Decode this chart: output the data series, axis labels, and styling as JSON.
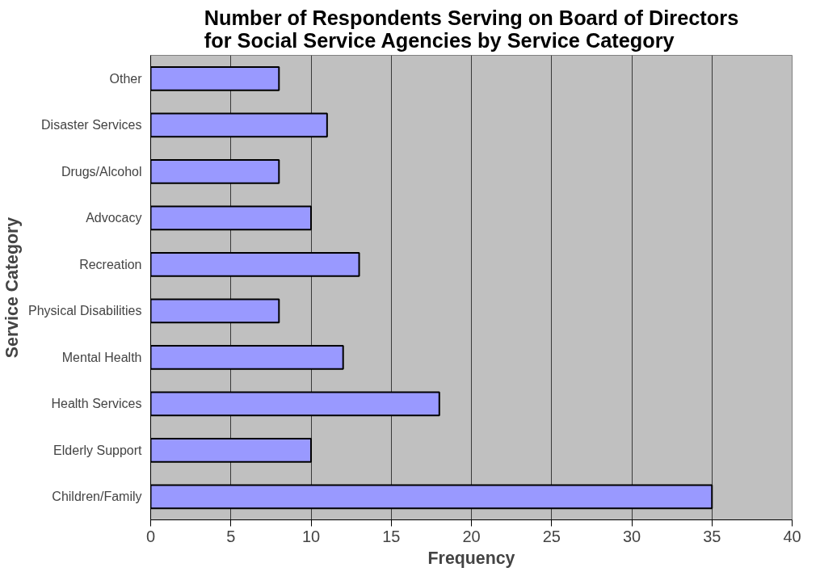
{
  "chart_data": {
    "type": "bar",
    "orientation": "horizontal",
    "title": "Number of Respondents Serving on Board of Directors\nfor Social Service Agencies by Service Category",
    "xlabel": "Frequency",
    "ylabel": "Service Category",
    "categories": [
      "Other",
      "Disaster Services",
      "Drugs/Alcohol",
      "Advocacy",
      "Recreation",
      "Physical Disabilities",
      "Mental Health",
      "Health Services",
      "Elderly Support",
      "Children/Family"
    ],
    "values": [
      8,
      11,
      8,
      10,
      13,
      8,
      12,
      18,
      10,
      35
    ],
    "color": "#9999ff",
    "xlim": [
      0,
      40
    ],
    "xticks": [
      0,
      5,
      10,
      15,
      20,
      25,
      30,
      35,
      40
    ],
    "grid": "x"
  }
}
